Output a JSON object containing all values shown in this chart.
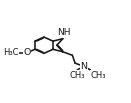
{
  "bg": "#ffffff",
  "lc": "#1a1a1a",
  "lw": 1.15,
  "fs": 6.8,
  "bl": 0.108,
  "figsize": [
    1.31,
    1.03
  ],
  "dpi": 100,
  "xlim": [
    0.0,
    1.05
  ],
  "ylim": [
    -0.05,
    1.0
  ]
}
